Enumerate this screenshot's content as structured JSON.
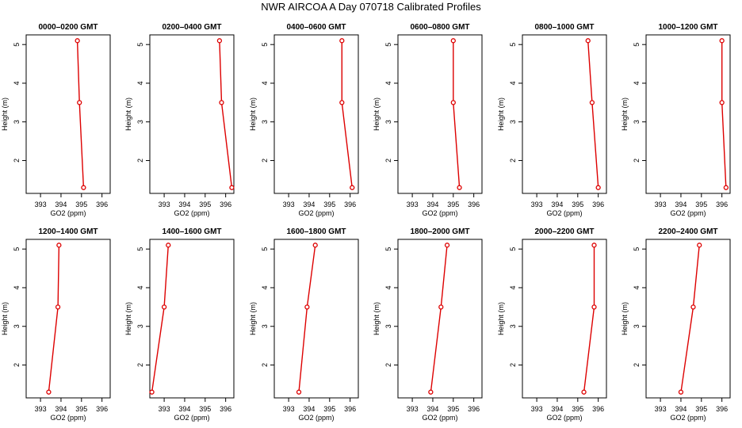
{
  "title": "NWR AIRCOA A  Day 070718  Calibrated Profiles",
  "colors": {
    "line": "#dd0000",
    "axis": "#000000"
  },
  "chart_data": [
    {
      "type": "line",
      "title": "0000–0200 GMT",
      "xlabel": "GO2 (ppm)",
      "ylabel": "Height (m)",
      "xlim": [
        392.3,
        396.4
      ],
      "ylim": [
        1.15,
        5.25
      ],
      "x_ticks": [
        "393",
        "394",
        "395",
        "396"
      ],
      "y_ticks": [
        "2",
        "3",
        "4",
        "5"
      ],
      "grid": false,
      "x": [
        394.8,
        394.9,
        395.1
      ],
      "y": [
        5.1,
        3.5,
        1.3
      ]
    },
    {
      "type": "line",
      "title": "0200–0400 GMT",
      "xlabel": "GO2 (ppm)",
      "ylabel": "Height (m)",
      "xlim": [
        392.3,
        396.4
      ],
      "ylim": [
        1.15,
        5.25
      ],
      "x_ticks": [
        "393",
        "394",
        "395",
        "396"
      ],
      "y_ticks": [
        "2",
        "3",
        "4",
        "5"
      ],
      "grid": false,
      "x": [
        395.7,
        395.8,
        396.3
      ],
      "y": [
        5.1,
        3.5,
        1.3
      ]
    },
    {
      "type": "line",
      "title": "0400–0600 GMT",
      "xlabel": "GO2 (ppm)",
      "ylabel": "Height (m)",
      "xlim": [
        392.3,
        396.4
      ],
      "ylim": [
        1.15,
        5.25
      ],
      "x_ticks": [
        "393",
        "394",
        "395",
        "396"
      ],
      "y_ticks": [
        "2",
        "3",
        "4",
        "5"
      ],
      "grid": false,
      "x": [
        395.6,
        395.6,
        396.1
      ],
      "y": [
        5.1,
        3.5,
        1.3
      ]
    },
    {
      "type": "line",
      "title": "0600–0800 GMT",
      "xlabel": "GO2 (ppm)",
      "ylabel": "Height (m)",
      "xlim": [
        392.3,
        396.4
      ],
      "ylim": [
        1.15,
        5.25
      ],
      "x_ticks": [
        "393",
        "394",
        "395",
        "396"
      ],
      "y_ticks": [
        "2",
        "3",
        "4",
        "5"
      ],
      "grid": false,
      "x": [
        395.0,
        395.0,
        395.3
      ],
      "y": [
        5.1,
        3.5,
        1.3
      ]
    },
    {
      "type": "line",
      "title": "0800–1000 GMT",
      "xlabel": "GO2 (ppm)",
      "ylabel": "Height (m)",
      "xlim": [
        392.3,
        396.4
      ],
      "ylim": [
        1.15,
        5.25
      ],
      "x_ticks": [
        "393",
        "394",
        "395",
        "396"
      ],
      "y_ticks": [
        "2",
        "3",
        "4",
        "5"
      ],
      "grid": false,
      "x": [
        395.5,
        395.7,
        396.0
      ],
      "y": [
        5.1,
        3.5,
        1.3
      ]
    },
    {
      "type": "line",
      "title": "1000–1200 GMT",
      "xlabel": "GO2 (ppm)",
      "ylabel": "Height (m)",
      "xlim": [
        392.3,
        396.4
      ],
      "ylim": [
        1.15,
        5.25
      ],
      "x_ticks": [
        "393",
        "394",
        "395",
        "396"
      ],
      "y_ticks": [
        "2",
        "3",
        "4",
        "5"
      ],
      "grid": false,
      "x": [
        396.0,
        396.0,
        396.2
      ],
      "y": [
        5.1,
        3.5,
        1.3
      ]
    },
    {
      "type": "line",
      "title": "1200–1400 GMT",
      "xlabel": "GO2 (ppm)",
      "ylabel": "Height (m)",
      "xlim": [
        392.3,
        396.4
      ],
      "ylim": [
        1.15,
        5.25
      ],
      "x_ticks": [
        "393",
        "394",
        "395",
        "396"
      ],
      "y_ticks": [
        "2",
        "3",
        "4",
        "5"
      ],
      "grid": false,
      "x": [
        393.9,
        393.85,
        393.4
      ],
      "y": [
        5.1,
        3.5,
        1.3
      ]
    },
    {
      "type": "line",
      "title": "1400–1600 GMT",
      "xlabel": "GO2 (ppm)",
      "ylabel": "Height (m)",
      "xlim": [
        392.3,
        396.4
      ],
      "ylim": [
        1.15,
        5.25
      ],
      "x_ticks": [
        "393",
        "394",
        "395",
        "396"
      ],
      "y_ticks": [
        "2",
        "3",
        "4",
        "5"
      ],
      "grid": false,
      "x": [
        393.2,
        393.0,
        392.4
      ],
      "y": [
        5.1,
        3.5,
        1.3
      ]
    },
    {
      "type": "line",
      "title": "1600–1800 GMT",
      "xlabel": "GO2 (ppm)",
      "ylabel": "Height (m)",
      "xlim": [
        392.3,
        396.4
      ],
      "ylim": [
        1.15,
        5.25
      ],
      "x_ticks": [
        "393",
        "394",
        "395",
        "396"
      ],
      "y_ticks": [
        "2",
        "3",
        "4",
        "5"
      ],
      "grid": false,
      "x": [
        394.3,
        393.9,
        393.5
      ],
      "y": [
        5.1,
        3.5,
        1.3
      ]
    },
    {
      "type": "line",
      "title": "1800–2000 GMT",
      "xlabel": "GO2 (ppm)",
      "ylabel": "Height (m)",
      "xlim": [
        392.3,
        396.4
      ],
      "ylim": [
        1.15,
        5.25
      ],
      "x_ticks": [
        "393",
        "394",
        "395",
        "396"
      ],
      "y_ticks": [
        "2",
        "3",
        "4",
        "5"
      ],
      "grid": false,
      "x": [
        394.7,
        394.4,
        393.9
      ],
      "y": [
        5.1,
        3.5,
        1.3
      ]
    },
    {
      "type": "line",
      "title": "2000–2200 GMT",
      "xlabel": "GO2 (ppm)",
      "ylabel": "Height (m)",
      "xlim": [
        392.3,
        396.4
      ],
      "ylim": [
        1.15,
        5.25
      ],
      "x_ticks": [
        "393",
        "394",
        "395",
        "396"
      ],
      "y_ticks": [
        "2",
        "3",
        "4",
        "5"
      ],
      "grid": false,
      "x": [
        395.8,
        395.8,
        395.3
      ],
      "y": [
        5.1,
        3.5,
        1.3
      ]
    },
    {
      "type": "line",
      "title": "2200–2400 GMT",
      "xlabel": "GO2 (ppm)",
      "ylabel": "Height (m)",
      "xlim": [
        392.3,
        396.4
      ],
      "ylim": [
        1.15,
        5.25
      ],
      "x_ticks": [
        "393",
        "394",
        "395",
        "396"
      ],
      "y_ticks": [
        "2",
        "3",
        "4",
        "5"
      ],
      "grid": false,
      "x": [
        394.9,
        394.6,
        394.0
      ],
      "y": [
        5.1,
        3.5,
        1.3
      ]
    }
  ]
}
